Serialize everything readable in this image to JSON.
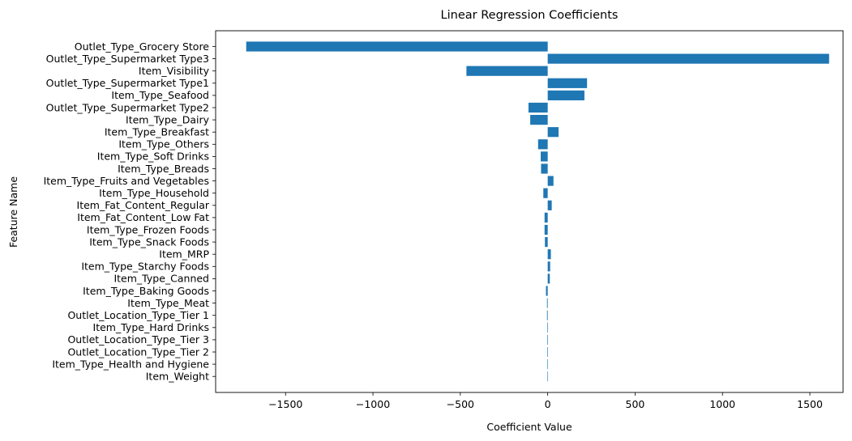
{
  "chart_data": {
    "type": "bar",
    "orientation": "horizontal",
    "title": "Linear Regression Coefficients",
    "xlabel": "Coefficient Value",
    "ylabel": "Feature Name",
    "xlim": [
      -1900,
      1690
    ],
    "xticks": [
      -1500,
      -1000,
      -500,
      0,
      500,
      1000,
      1500
    ],
    "xtick_labels": [
      "−1500",
      "−1000",
      "−500",
      "0",
      "500",
      "1000",
      "1500"
    ],
    "grid": false,
    "bar_color": "#1f77b4",
    "categories": [
      "Outlet_Type_Grocery Store",
      "Outlet_Type_Supermarket Type3",
      "Item_Visibility",
      "Outlet_Type_Supermarket Type1",
      "Item_Type_Seafood",
      "Outlet_Type_Supermarket Type2",
      "Item_Type_Dairy",
      "Item_Type_Breakfast",
      "Item_Type_Others",
      "Item_Type_Soft Drinks",
      "Item_Type_Breads",
      "Item_Type_Fruits and Vegetables",
      "Item_Type_Household",
      "Item_Fat_Content_Regular",
      "Item_Fat_Content_Low Fat",
      "Item_Type_Frozen Foods",
      "Item_Type_Snack Foods",
      "Item_MRP",
      "Item_Type_Starchy Foods",
      "Item_Type_Canned",
      "Item_Type_Baking Goods",
      "Item_Type_Meat",
      "Outlet_Location_Type_Tier 1",
      "Item_Type_Hard Drinks",
      "Outlet_Location_Type_Tier 3",
      "Outlet_Location_Type_Tier 2",
      "Item_Type_Health and Hygiene",
      "Item_Weight"
    ],
    "values": [
      -1725,
      1610,
      -465,
      225,
      210,
      -110,
      -100,
      62,
      -55,
      -40,
      -38,
      33,
      -25,
      23,
      -18,
      -18,
      -16,
      18,
      14,
      12,
      -10,
      -4,
      -4,
      -3,
      -3,
      -3,
      -2,
      -1
    ]
  }
}
